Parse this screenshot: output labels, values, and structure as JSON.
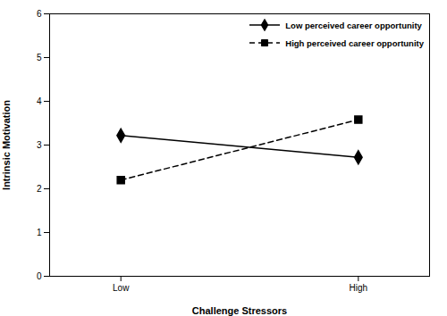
{
  "chart_data": {
    "type": "line",
    "xlabel": "Challenge Stressors",
    "ylabel": "Intrinsic Motivation",
    "x": [
      0,
      1
    ],
    "xlim": [
      -0.3,
      1.3
    ],
    "xticks": [
      {
        "value": 0,
        "label": "Low"
      },
      {
        "value": 1,
        "label": "High"
      }
    ],
    "ylim": [
      0,
      6
    ],
    "yticks": [
      0,
      1,
      2,
      3,
      4,
      5,
      6
    ],
    "legend": "upper right",
    "series": [
      {
        "name": "Low perceived career opportunity",
        "color": "#000000",
        "values": [
          3.22,
          2.72
        ],
        "marker": "diamond",
        "line_style": "solid"
      },
      {
        "name": "High perceived career opportunity",
        "color": "#000000",
        "values": [
          2.2,
          3.58
        ],
        "marker": "square",
        "line_style": "dashed"
      }
    ]
  }
}
